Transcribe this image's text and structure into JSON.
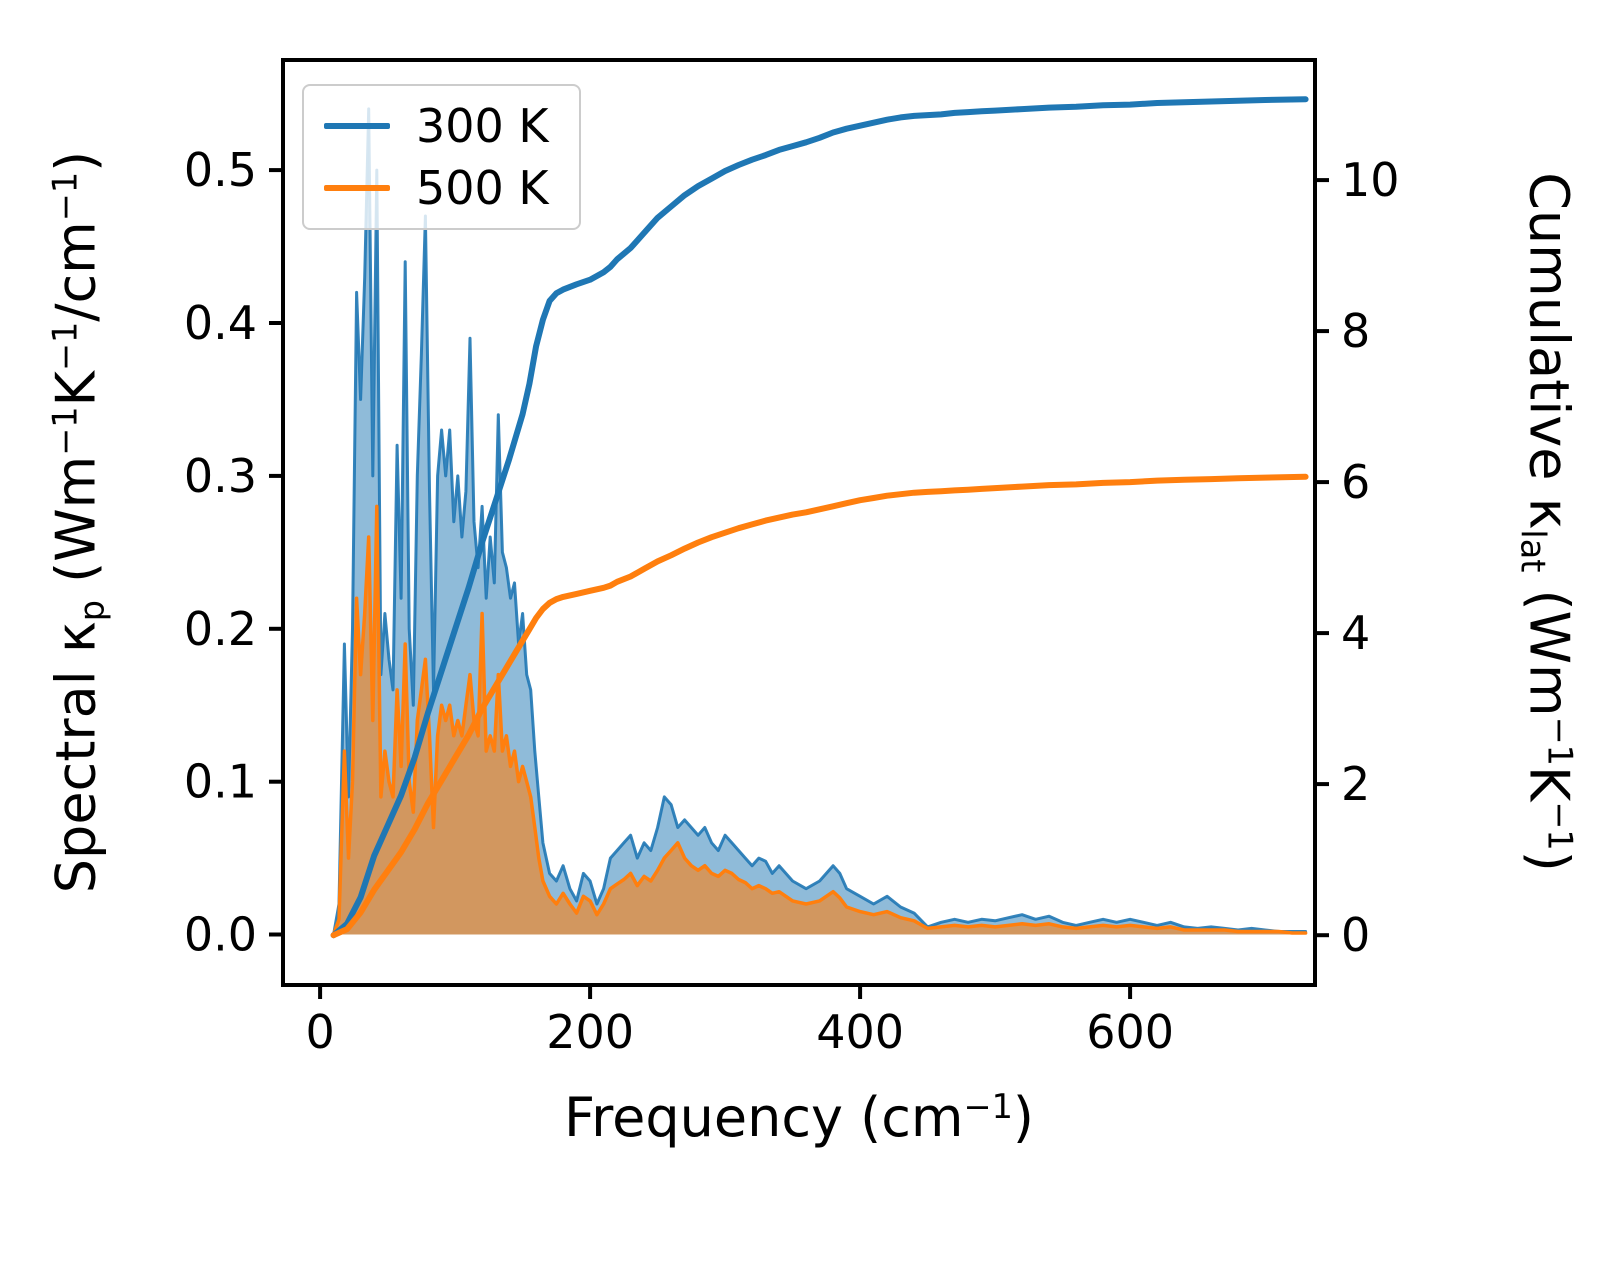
{
  "figure": {
    "background": "#ffffff"
  },
  "chart_data": {
    "type": "line",
    "title": "",
    "xlabel": "Frequency (cm⁻¹)",
    "ylabel_left": "Spectral κₚ (Wm⁻¹K⁻¹/cm⁻¹)",
    "ylabel_right": "Cumulative κₗₐₜ (Wm⁻¹K⁻¹)",
    "xlabel_parts": [
      {
        "text": "Frequency (cm"
      },
      {
        "text": "−1",
        "sup": true
      },
      {
        "text": ")"
      }
    ],
    "ylabel_left_parts": [
      {
        "text": "Spectral κ"
      },
      {
        "text": "p",
        "sub": true
      },
      {
        "text": " (Wm"
      },
      {
        "text": "−1",
        "sup": true
      },
      {
        "text": "K"
      },
      {
        "text": "−1",
        "sup": true
      },
      {
        "text": "/cm"
      },
      {
        "text": "−1",
        "sup": true
      },
      {
        "text": ")"
      }
    ],
    "ylabel_right_parts": [
      {
        "text": "Cumulative κ"
      },
      {
        "text": "lat",
        "sub": true
      },
      {
        "text": " (Wm"
      },
      {
        "text": "−1",
        "sup": true
      },
      {
        "text": "K"
      },
      {
        "text": "−1",
        "sup": true
      },
      {
        "text": ")"
      }
    ],
    "xlim": [
      -27.5,
      737
    ],
    "ylim_left": [
      -0.033,
      0.572
    ],
    "ylim_right": [
      -0.66,
      11.59
    ],
    "grid": false,
    "legend_position": "upper-left",
    "x_ticks": {
      "values": [
        0,
        200,
        400,
        600
      ],
      "labels": [
        "0",
        "200",
        "400",
        "600"
      ]
    },
    "y_ticks_left": {
      "values": [
        0.0,
        0.1,
        0.2,
        0.3,
        0.4,
        0.5
      ],
      "labels": [
        "0.0",
        "0.1",
        "0.2",
        "0.3",
        "0.4",
        "0.5"
      ]
    },
    "y_ticks_right": {
      "values": [
        0,
        2,
        4,
        6,
        8,
        10
      ],
      "labels": [
        "0",
        "2",
        "4",
        "6",
        "8",
        "10"
      ]
    },
    "colors": {
      "c300": "#1f77b4",
      "c500": "#ff7f0e"
    },
    "fill_opacity": {
      "c300": 0.5,
      "c500": 0.6
    },
    "legend": [
      {
        "label": "300 K",
        "color": "#1f77b4"
      },
      {
        "label": "500 K",
        "color": "#ff7f0e"
      }
    ],
    "spectral": {
      "axis": "left",
      "x": [
        10,
        14,
        18,
        21,
        24,
        27,
        30,
        33,
        36,
        39,
        42,
        45,
        48,
        51,
        54,
        57,
        60,
        63,
        66,
        69,
        72,
        75,
        78,
        81,
        84,
        87,
        90,
        93,
        96,
        99,
        102,
        105,
        108,
        111,
        114,
        117,
        120,
        123,
        126,
        129,
        132,
        135,
        138,
        141,
        144,
        147,
        150,
        153,
        156,
        159,
        162,
        165,
        170,
        175,
        180,
        185,
        190,
        195,
        200,
        205,
        210,
        215,
        220,
        225,
        230,
        235,
        240,
        245,
        250,
        255,
        260,
        265,
        270,
        275,
        280,
        285,
        290,
        295,
        300,
        305,
        310,
        315,
        320,
        325,
        330,
        335,
        340,
        350,
        360,
        370,
        380,
        385,
        390,
        400,
        410,
        420,
        430,
        440,
        450,
        460,
        470,
        480,
        490,
        500,
        510,
        520,
        530,
        540,
        550,
        560,
        570,
        580,
        590,
        600,
        610,
        620,
        630,
        640,
        650,
        660,
        670,
        680,
        690,
        700,
        710,
        720,
        730
      ],
      "y300": [
        0,
        0.02,
        0.19,
        0.09,
        0.2,
        0.42,
        0.35,
        0.43,
        0.54,
        0.3,
        0.5,
        0.17,
        0.21,
        0.18,
        0.16,
        0.32,
        0.22,
        0.44,
        0.2,
        0.15,
        0.3,
        0.38,
        0.47,
        0.29,
        0.16,
        0.3,
        0.33,
        0.3,
        0.33,
        0.27,
        0.3,
        0.26,
        0.29,
        0.39,
        0.27,
        0.24,
        0.28,
        0.22,
        0.26,
        0.23,
        0.34,
        0.25,
        0.24,
        0.22,
        0.23,
        0.19,
        0.21,
        0.17,
        0.16,
        0.12,
        0.09,
        0.06,
        0.04,
        0.035,
        0.045,
        0.03,
        0.022,
        0.04,
        0.035,
        0.02,
        0.03,
        0.05,
        0.055,
        0.06,
        0.065,
        0.05,
        0.06,
        0.055,
        0.07,
        0.09,
        0.085,
        0.07,
        0.075,
        0.07,
        0.065,
        0.07,
        0.06,
        0.055,
        0.065,
        0.06,
        0.055,
        0.05,
        0.045,
        0.05,
        0.048,
        0.04,
        0.045,
        0.035,
        0.03,
        0.035,
        0.045,
        0.04,
        0.03,
        0.025,
        0.02,
        0.025,
        0.018,
        0.014,
        0.005,
        0.008,
        0.01,
        0.008,
        0.01,
        0.009,
        0.011,
        0.013,
        0.01,
        0.012,
        0.008,
        0.006,
        0.008,
        0.01,
        0.008,
        0.01,
        0.008,
        0.006,
        0.008,
        0.005,
        0.004,
        0.005,
        0.004,
        0.003,
        0.004,
        0.003,
        0.002,
        0.002,
        0.002
      ],
      "y500": [
        0,
        0.01,
        0.12,
        0.05,
        0.1,
        0.22,
        0.17,
        0.21,
        0.26,
        0.14,
        0.28,
        0.09,
        0.12,
        0.1,
        0.09,
        0.16,
        0.11,
        0.19,
        0.1,
        0.08,
        0.14,
        0.16,
        0.18,
        0.13,
        0.07,
        0.13,
        0.15,
        0.14,
        0.15,
        0.13,
        0.14,
        0.13,
        0.15,
        0.17,
        0.14,
        0.13,
        0.21,
        0.12,
        0.13,
        0.12,
        0.17,
        0.12,
        0.13,
        0.11,
        0.12,
        0.1,
        0.11,
        0.1,
        0.09,
        0.07,
        0.05,
        0.035,
        0.025,
        0.02,
        0.027,
        0.02,
        0.014,
        0.025,
        0.022,
        0.013,
        0.02,
        0.03,
        0.033,
        0.036,
        0.04,
        0.032,
        0.038,
        0.035,
        0.042,
        0.05,
        0.055,
        0.06,
        0.05,
        0.045,
        0.042,
        0.045,
        0.04,
        0.038,
        0.042,
        0.04,
        0.036,
        0.034,
        0.03,
        0.032,
        0.03,
        0.027,
        0.028,
        0.022,
        0.02,
        0.022,
        0.028,
        0.024,
        0.018,
        0.015,
        0.013,
        0.015,
        0.011,
        0.009,
        0.004,
        0.005,
        0.006,
        0.005,
        0.006,
        0.005,
        0.006,
        0.007,
        0.006,
        0.007,
        0.005,
        0.004,
        0.005,
        0.006,
        0.005,
        0.006,
        0.005,
        0.004,
        0.005,
        0.003,
        0.003,
        0.003,
        0.003,
        0.002,
        0.002,
        0.002,
        0.002,
        0.001,
        0.001
      ]
    },
    "cumulative": {
      "axis": "right",
      "x": [
        10,
        20,
        30,
        40,
        50,
        60,
        70,
        80,
        90,
        100,
        110,
        120,
        130,
        140,
        150,
        155,
        160,
        165,
        170,
        175,
        180,
        190,
        200,
        210,
        215,
        220,
        230,
        240,
        250,
        260,
        270,
        280,
        290,
        300,
        310,
        320,
        330,
        340,
        350,
        360,
        370,
        380,
        390,
        400,
        410,
        420,
        430,
        440,
        450,
        460,
        470,
        480,
        490,
        500,
        520,
        540,
        560,
        580,
        600,
        620,
        640,
        660,
        680,
        700,
        730
      ],
      "y300": [
        0,
        0.15,
        0.5,
        1.05,
        1.45,
        1.85,
        2.35,
        2.95,
        3.5,
        4.05,
        4.6,
        5.2,
        5.75,
        6.3,
        6.9,
        7.3,
        7.8,
        8.15,
        8.4,
        8.5,
        8.55,
        8.62,
        8.68,
        8.78,
        8.85,
        8.95,
        9.1,
        9.3,
        9.5,
        9.65,
        9.8,
        9.92,
        10.02,
        10.12,
        10.2,
        10.27,
        10.33,
        10.4,
        10.45,
        10.5,
        10.56,
        10.63,
        10.68,
        10.72,
        10.76,
        10.8,
        10.83,
        10.85,
        10.86,
        10.87,
        10.89,
        10.9,
        10.91,
        10.92,
        10.94,
        10.96,
        10.97,
        10.99,
        11.0,
        11.02,
        11.03,
        11.04,
        11.05,
        11.06,
        11.07
      ],
      "y500": [
        0,
        0.08,
        0.3,
        0.6,
        0.85,
        1.1,
        1.4,
        1.75,
        2.05,
        2.35,
        2.65,
        3.0,
        3.3,
        3.6,
        3.9,
        4.05,
        4.2,
        4.32,
        4.4,
        4.45,
        4.48,
        4.52,
        4.56,
        4.6,
        4.63,
        4.68,
        4.75,
        4.85,
        4.95,
        5.03,
        5.12,
        5.2,
        5.27,
        5.33,
        5.39,
        5.44,
        5.49,
        5.53,
        5.57,
        5.6,
        5.64,
        5.68,
        5.72,
        5.76,
        5.79,
        5.82,
        5.84,
        5.86,
        5.87,
        5.88,
        5.89,
        5.9,
        5.91,
        5.92,
        5.94,
        5.96,
        5.97,
        5.99,
        6.0,
        6.02,
        6.03,
        6.04,
        6.05,
        6.06,
        6.07
      ]
    }
  }
}
